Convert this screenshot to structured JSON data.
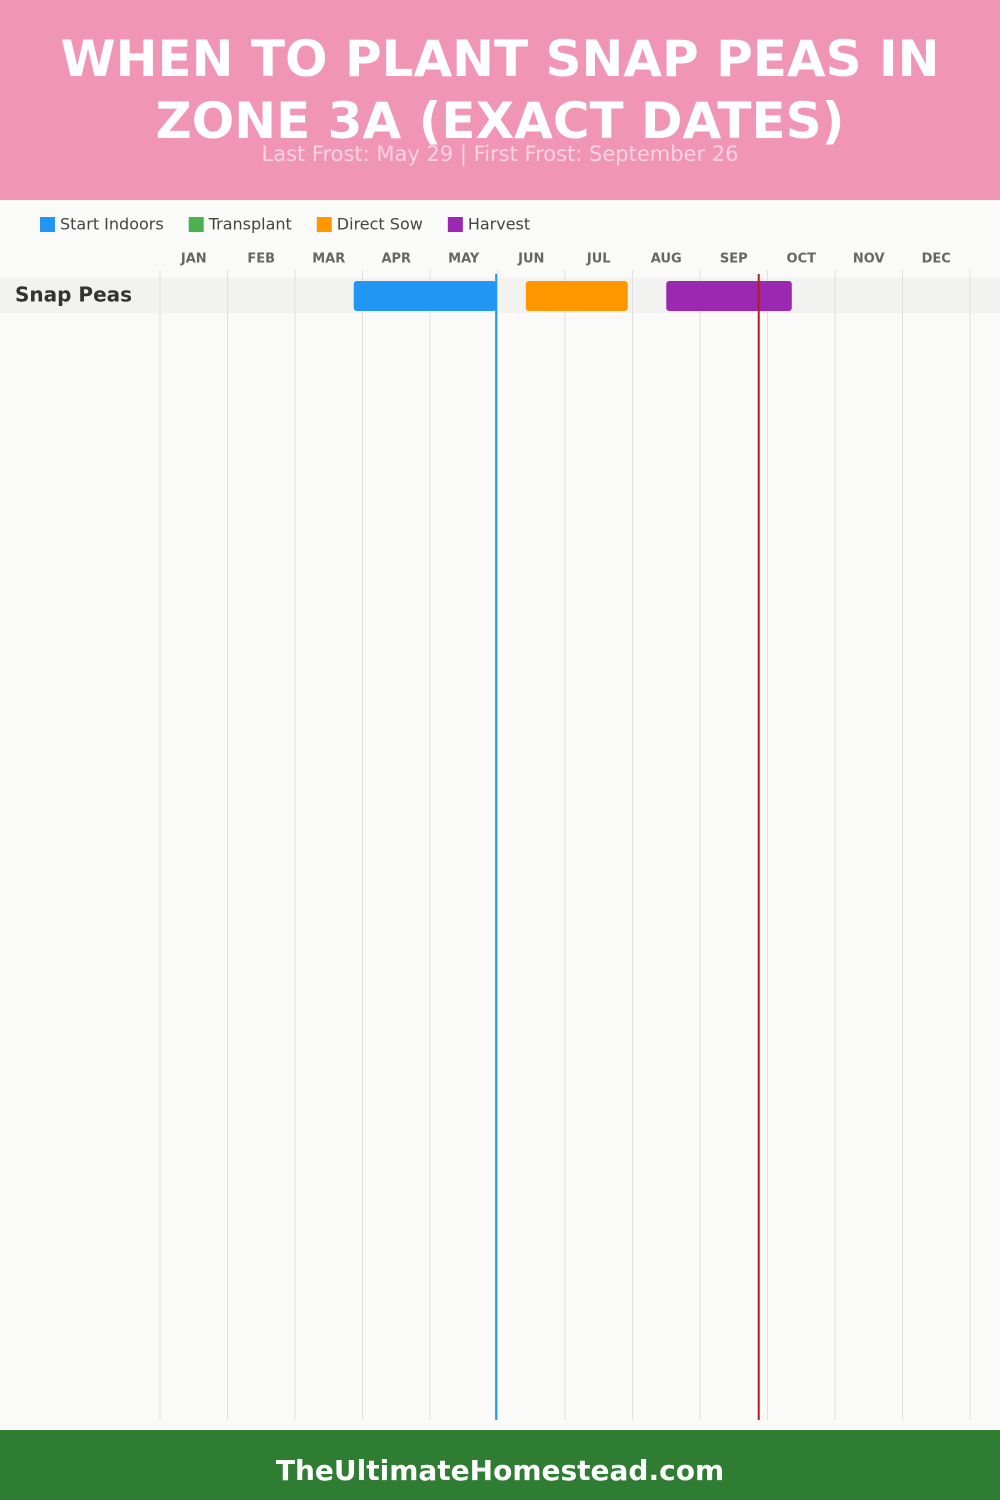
{
  "chart_data": {
    "type": "gantt",
    "title": "WHEN TO PLANT SNAP PEAS IN ZONE 3A (EXACT DATES)",
    "subtitle": "Last Frost: May 29 | First Frost: September 26",
    "months": [
      "JAN",
      "FEB",
      "MAR",
      "APR",
      "MAY",
      "JUN",
      "JUL",
      "AUG",
      "SEP",
      "OCT",
      "NOV",
      "DEC"
    ],
    "xlim": [
      0,
      12
    ],
    "categories": [
      "Snap Peas"
    ],
    "series": [
      {
        "name": "Start Indoors",
        "color": "#2196f3",
        "values": [
          [
            2.87,
            4.98
          ]
        ]
      },
      {
        "name": "Transplant",
        "color": "#4caf50",
        "values": [
          null
        ]
      },
      {
        "name": "Direct Sow",
        "color": "#ff9800",
        "values": [
          [
            5.42,
            6.93
          ]
        ]
      },
      {
        "name": "Harvest",
        "color": "#9c27b0",
        "values": [
          [
            7.5,
            9.36
          ]
        ]
      }
    ],
    "frost_lines": [
      {
        "value": 4.98,
        "color": "#2196f3"
      },
      {
        "value": 8.87,
        "color": "#b71c1c"
      }
    ],
    "footer": "TheUltimateHomestead.com"
  }
}
